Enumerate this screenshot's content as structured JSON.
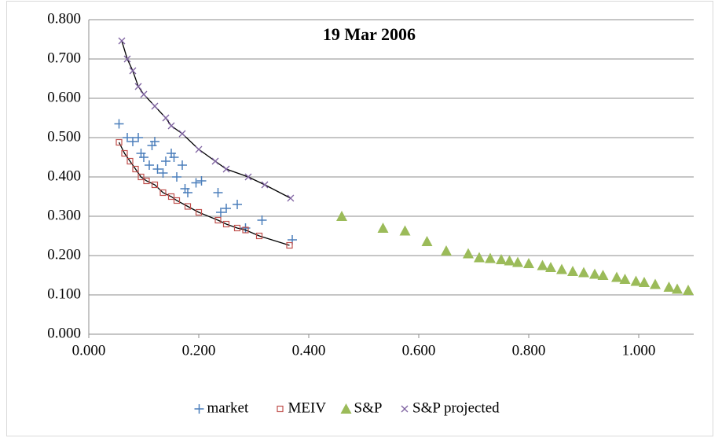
{
  "chart_data": {
    "type": "scatter",
    "title": "19 Mar 2006",
    "xlim": [
      0,
      1.1
    ],
    "ylim": [
      0,
      0.8
    ],
    "xticks": [
      {
        "value": 0,
        "label": "0.000"
      },
      {
        "value": 0.2,
        "label": "0.200"
      },
      {
        "value": 0.4,
        "label": "0.400"
      },
      {
        "value": 0.6,
        "label": "0.600"
      },
      {
        "value": 0.8,
        "label": "0.800"
      },
      {
        "value": 1.0,
        "label": "1.000"
      }
    ],
    "yticks": [
      {
        "value": 0,
        "label": "0.000"
      },
      {
        "value": 0.1,
        "label": "0.100"
      },
      {
        "value": 0.2,
        "label": "0.200"
      },
      {
        "value": 0.3,
        "label": "0.300"
      },
      {
        "value": 0.4,
        "label": "0.400"
      },
      {
        "value": 0.5,
        "label": "0.500"
      },
      {
        "value": 0.6,
        "label": "0.600"
      },
      {
        "value": 0.7,
        "label": "0.700"
      },
      {
        "value": 0.8,
        "label": "0.800"
      }
    ],
    "grid": true,
    "legend": "bottom",
    "series": [
      {
        "name": "market",
        "color": "#4a7ebb",
        "marker": "plus",
        "trendline": false,
        "x": [
          0.055,
          0.07,
          0.08,
          0.09,
          0.095,
          0.1,
          0.11,
          0.115,
          0.12,
          0.125,
          0.135,
          0.14,
          0.15,
          0.155,
          0.16,
          0.17,
          0.175,
          0.18,
          0.195,
          0.205,
          0.235,
          0.24,
          0.25,
          0.27,
          0.285,
          0.315,
          0.37
        ],
        "values": [
          0.535,
          0.5,
          0.49,
          0.5,
          0.46,
          0.45,
          0.43,
          0.48,
          0.49,
          0.42,
          0.41,
          0.44,
          0.46,
          0.45,
          0.4,
          0.43,
          0.37,
          0.36,
          0.385,
          0.39,
          0.36,
          0.31,
          0.32,
          0.33,
          0.27,
          0.29,
          0.24
        ]
      },
      {
        "name": "MEIV",
        "color": "#c0504d",
        "marker": "square",
        "trendline": true,
        "x": [
          0.055,
          0.065,
          0.075,
          0.085,
          0.095,
          0.105,
          0.12,
          0.135,
          0.15,
          0.16,
          0.18,
          0.2,
          0.235,
          0.25,
          0.27,
          0.285,
          0.31,
          0.365
        ],
        "values": [
          0.488,
          0.46,
          0.44,
          0.42,
          0.4,
          0.39,
          0.38,
          0.36,
          0.35,
          0.34,
          0.325,
          0.31,
          0.29,
          0.28,
          0.27,
          0.265,
          0.25,
          0.226
        ]
      },
      {
        "name": "S&P",
        "color": "#9bbb59",
        "marker": "triangle",
        "trendline": false,
        "x": [
          0.46,
          0.535,
          0.575,
          0.615,
          0.65,
          0.69,
          0.71,
          0.73,
          0.75,
          0.765,
          0.78,
          0.8,
          0.825,
          0.84,
          0.86,
          0.88,
          0.9,
          0.92,
          0.935,
          0.96,
          0.975,
          0.995,
          1.01,
          1.03,
          1.055,
          1.07,
          1.09
        ],
        "values": [
          0.3,
          0.27,
          0.263,
          0.236,
          0.212,
          0.205,
          0.195,
          0.193,
          0.19,
          0.187,
          0.183,
          0.18,
          0.175,
          0.17,
          0.165,
          0.16,
          0.157,
          0.153,
          0.15,
          0.145,
          0.14,
          0.135,
          0.132,
          0.127,
          0.12,
          0.115,
          0.112
        ]
      },
      {
        "name": "S&P projected",
        "color": "#8064a2",
        "marker": "cross",
        "trendline": true,
        "x": [
          0.06,
          0.07,
          0.08,
          0.09,
          0.1,
          0.12,
          0.14,
          0.15,
          0.17,
          0.2,
          0.23,
          0.25,
          0.29,
          0.32,
          0.367
        ],
        "values": [
          0.746,
          0.7,
          0.67,
          0.63,
          0.61,
          0.58,
          0.55,
          0.53,
          0.51,
          0.47,
          0.44,
          0.42,
          0.4,
          0.38,
          0.346
        ]
      }
    ]
  }
}
